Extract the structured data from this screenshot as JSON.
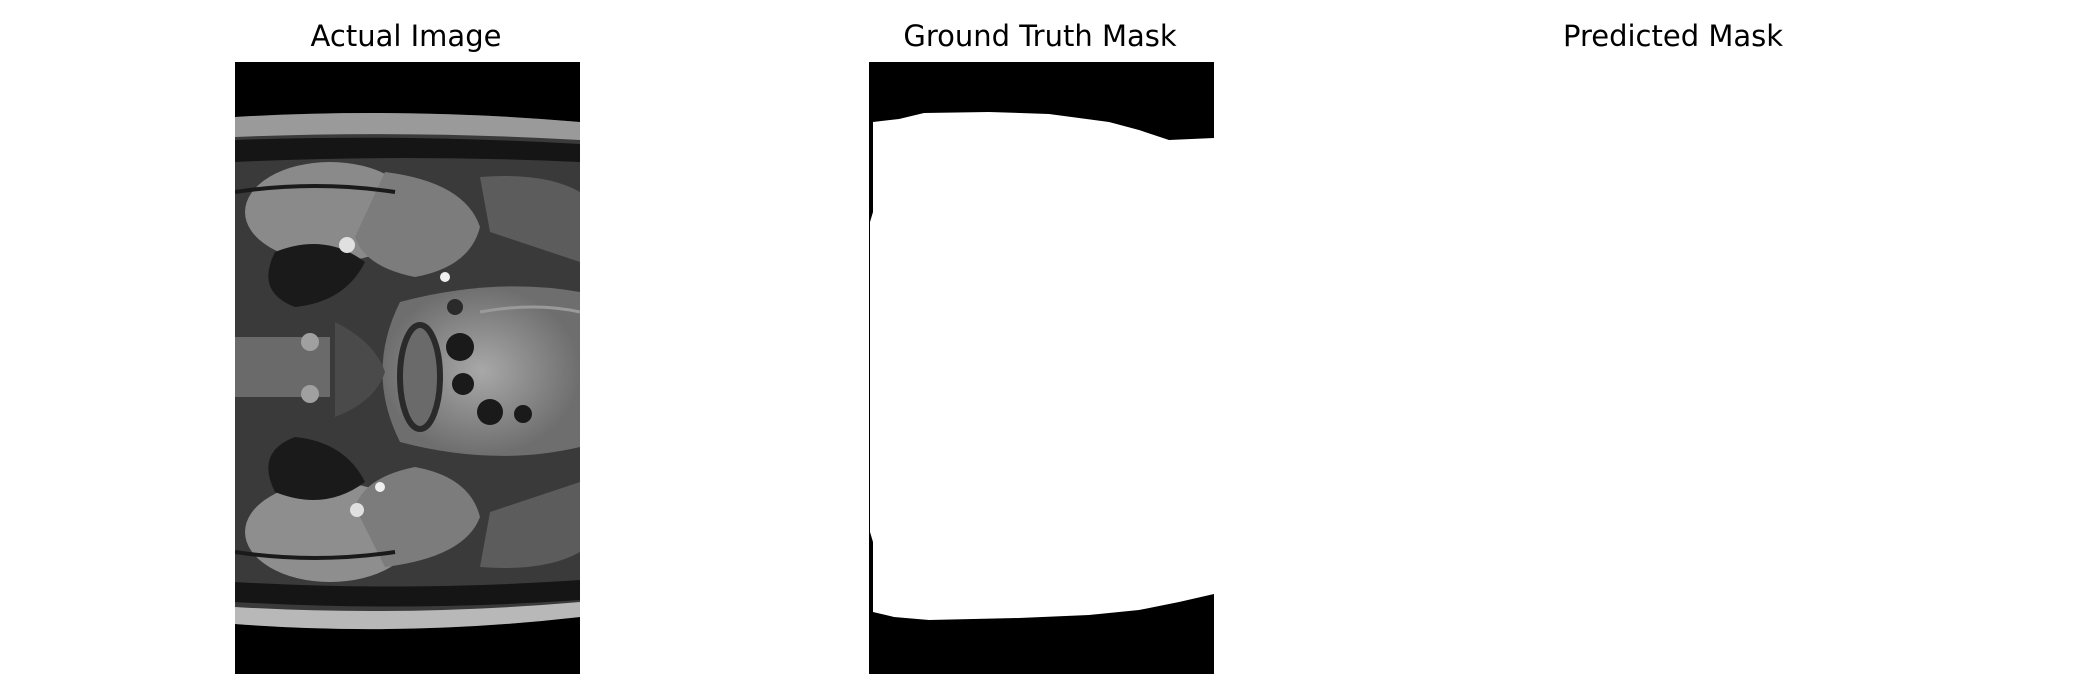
{
  "panels": [
    {
      "title": "Actual Image",
      "content": "mri-scan"
    },
    {
      "title": "Ground Truth Mask",
      "content": "binary-mask"
    },
    {
      "title": "Predicted Mask",
      "content": "empty-mask"
    }
  ],
  "colors": {
    "background": "#000000",
    "mask": "#ffffff"
  }
}
